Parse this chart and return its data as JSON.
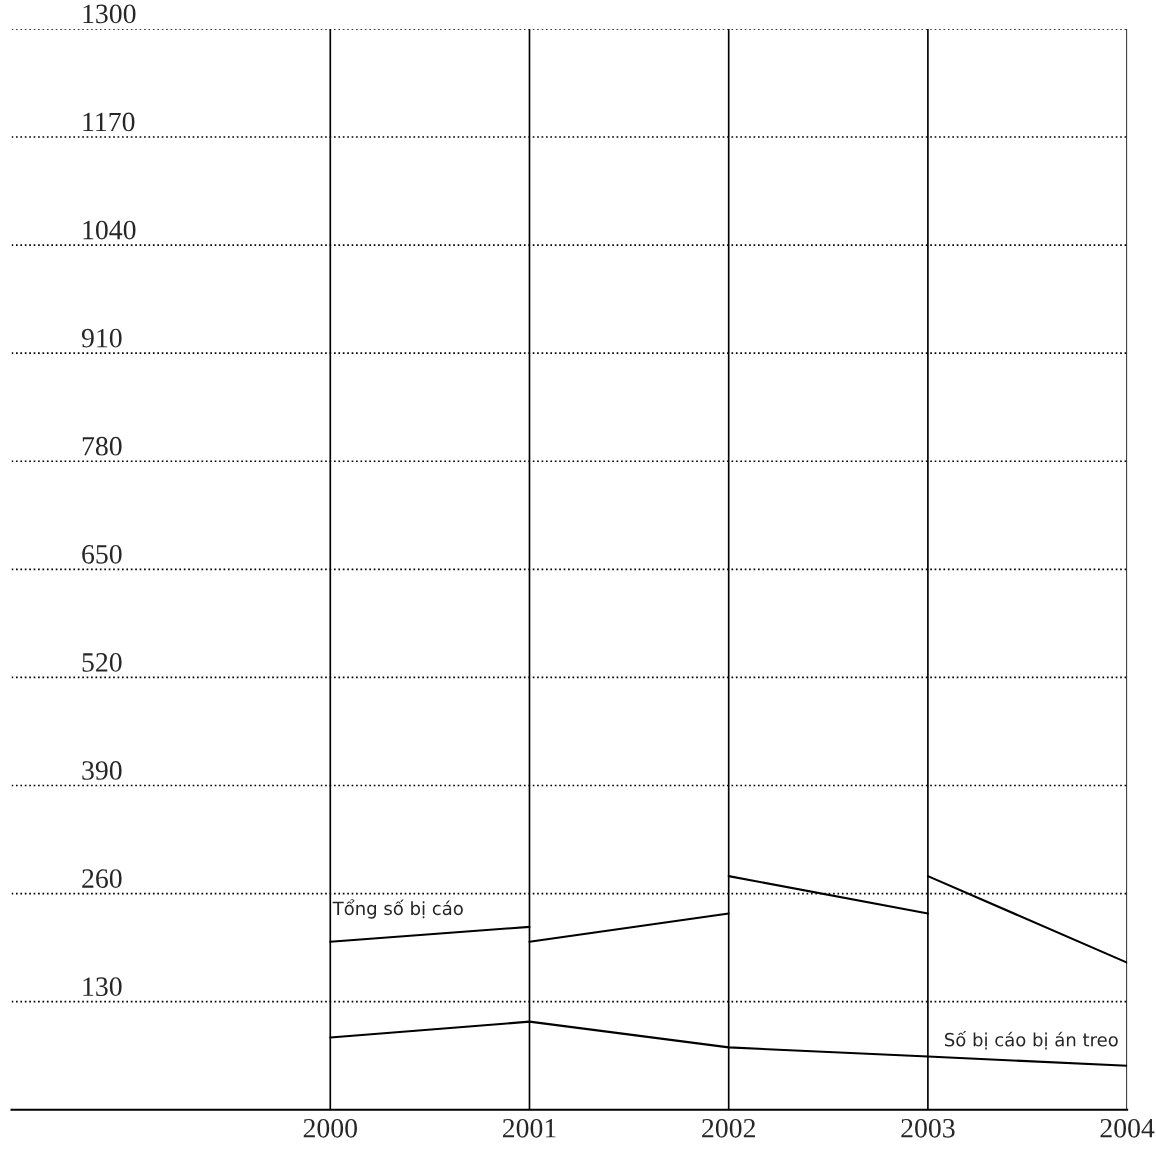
{
  "chart_data": {
    "type": "line",
    "series": [
      {
        "name": "Tổng số bị cáo",
        "color": "#000000",
        "x": [
          2000,
          2001
        ],
        "values": [
          202,
          220
        ]
      },
      {
        "color": "#000000",
        "x": [
          2001,
          2002
        ],
        "values": [
          202,
          236
        ]
      },
      {
        "color": "#000000",
        "x": [
          2002,
          2003
        ],
        "values": [
          281,
          236
        ]
      },
      {
        "color": "#000000",
        "x": [
          2003,
          2004
        ],
        "values": [
          281,
          177
        ]
      },
      {
        "name": "Số bị cáo bị án treo",
        "color": "#000000",
        "x": [
          2000,
          2001,
          2002,
          2003,
          2004
        ],
        "values": [
          87,
          106,
          75,
          64,
          53
        ]
      }
    ],
    "xlim": [
      1998.4,
      2004
    ],
    "xticks": [
      2000,
      2001,
      2002,
      2003,
      2004
    ],
    "ylim": [
      0,
      1300
    ],
    "yticks": [
      130,
      260,
      390,
      520,
      650,
      780,
      910,
      1040,
      1170,
      1300
    ],
    "grid": true,
    "legend": false,
    "marker": "none",
    "line_style": "solid"
  }
}
